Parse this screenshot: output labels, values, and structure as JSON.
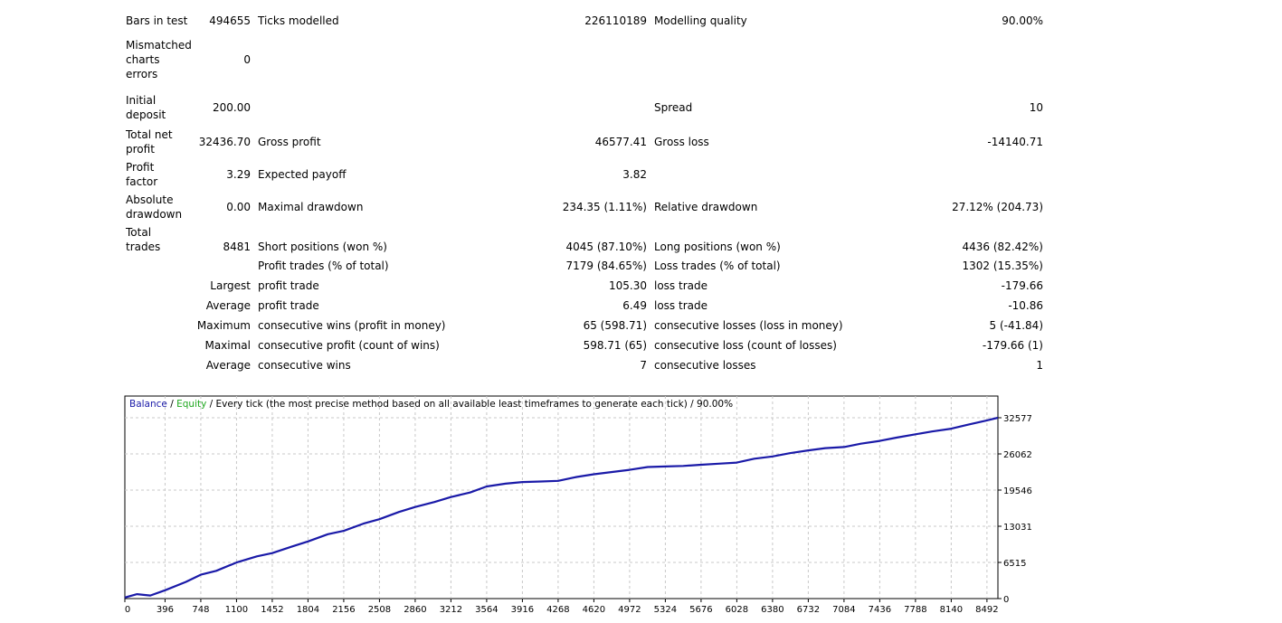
{
  "stats": {
    "bars_in_test_label": "Bars in test",
    "bars_in_test": "494655",
    "ticks_modelled_label": "Ticks modelled",
    "ticks_modelled": "226110189",
    "modelling_quality_label": "Modelling quality",
    "modelling_quality": "90.00%",
    "mismatched_label": "Mismatched charts errors",
    "mismatched": "0",
    "initial_deposit_label": "Initial deposit",
    "initial_deposit": "200.00",
    "spread_label": "Spread",
    "spread": "10",
    "total_net_profit_label": "Total net profit",
    "total_net_profit": "32436.70",
    "gross_profit_label": "Gross profit",
    "gross_profit": "46577.41",
    "gross_loss_label": "Gross loss",
    "gross_loss": "-14140.71",
    "profit_factor_label": "Profit factor",
    "profit_factor": "3.29",
    "expected_payoff_label": "Expected payoff",
    "expected_payoff": "3.82",
    "absolute_drawdown_label": "Absolute drawdown",
    "absolute_drawdown": "0.00",
    "maximal_drawdown_label": "Maximal drawdown",
    "maximal_drawdown": "234.35 (1.11%)",
    "relative_drawdown_label": "Relative drawdown",
    "relative_drawdown": "27.12% (204.73)",
    "total_trades_label": "Total trades",
    "total_trades": "8481",
    "short_positions_label": "Short positions (won %)",
    "short_positions": "4045 (87.10%)",
    "long_positions_label": "Long positions (won %)",
    "long_positions": "4436 (82.42%)",
    "profit_trades_label": "Profit trades (% of total)",
    "profit_trades": "7179 (84.65%)",
    "loss_trades_label": "Loss trades (% of total)",
    "loss_trades": "1302 (15.35%)",
    "largest_label": "Largest",
    "largest_profit_label": "profit trade",
    "largest_profit": "105.30",
    "largest_loss_label": "loss trade",
    "largest_loss": "-179.66",
    "average_label": "Average",
    "average_profit_label": "profit trade",
    "average_profit": "6.49",
    "average_loss_label": "loss trade",
    "average_loss": "-10.86",
    "maximum_label": "Maximum",
    "max_consec_wins_label": "consecutive wins (profit in money)",
    "max_consec_wins": "65 (598.71)",
    "max_consec_losses_label": "consecutive losses (loss in money)",
    "max_consec_losses": "5 (-41.84)",
    "maximal_label": "Maximal",
    "maximal_consec_profit_label": "consecutive profit (count of wins)",
    "maximal_consec_profit": "598.71 (65)",
    "maximal_consec_loss_label": "consecutive loss (count of losses)",
    "maximal_consec_loss": "-179.66 (1)",
    "average2_label": "Average",
    "avg_consec_wins_label": "consecutive wins",
    "avg_consec_wins": "7",
    "avg_consec_losses_label": "consecutive losses",
    "avg_consec_losses": "1"
  },
  "chart_header": {
    "balance": "Balance",
    "sep1": " / ",
    "equity": "Equity",
    "rest": " / Every tick (the most precise method based on all available least timeframes to generate each tick) / 90.00%"
  },
  "colors": {
    "balance_line": "#1a1aa8",
    "equity_label": "#1ea81e",
    "grid": "#c8c8c8",
    "frame": "#000000"
  },
  "chart_data": {
    "type": "line",
    "series": [
      {
        "name": "Balance",
        "x": [
          0,
          120,
          250,
          396,
          600,
          748,
          900,
          1100,
          1300,
          1452,
          1650,
          1804,
          2000,
          2156,
          2350,
          2508,
          2700,
          2860,
          3050,
          3212,
          3400,
          3564,
          3750,
          3916,
          4100,
          4268,
          4450,
          4620,
          4800,
          4972,
          5150,
          5324,
          5500,
          5676,
          5850,
          6028,
          6200,
          6380,
          6550,
          6732,
          6900,
          7084,
          7250,
          7436,
          7600,
          7788,
          7950,
          8140,
          8300,
          8492,
          8600
        ],
        "y": [
          200,
          800,
          550,
          1500,
          3000,
          4300,
          5000,
          6500,
          7600,
          8200,
          9400,
          10300,
          11600,
          12200,
          13500,
          14300,
          15600,
          16500,
          17400,
          18300,
          19100,
          20200,
          20700,
          21000,
          21100,
          21200,
          21900,
          22400,
          22800,
          23200,
          23700,
          23800,
          23900,
          24100,
          24300,
          24500,
          25200,
          25600,
          26200,
          26700,
          27100,
          27300,
          27900,
          28400,
          29000,
          29600,
          30100,
          30600,
          31300,
          32100,
          32577
        ]
      }
    ],
    "x_ticks": [
      "0",
      "396",
      "748",
      "1100",
      "1452",
      "1804",
      "2156",
      "2508",
      "2860",
      "3212",
      "3564",
      "3916",
      "4268",
      "4620",
      "4972",
      "5324",
      "5676",
      "6028",
      "6380",
      "6732",
      "7084",
      "7436",
      "7788",
      "8140",
      "8492"
    ],
    "y_ticks": [
      "0",
      "6515",
      "13031",
      "19546",
      "26062",
      "32577"
    ],
    "xlim": [
      0,
      8600
    ],
    "ylim": [
      0,
      32577
    ],
    "grid": true
  }
}
